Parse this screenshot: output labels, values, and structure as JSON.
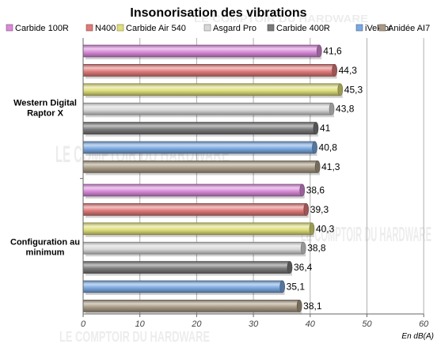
{
  "chart_data": {
    "type": "bar",
    "orientation": "horizontal",
    "title": "Insonorisation des vibrations",
    "unit_label": "En dB(A)",
    "xlim": [
      0,
      60
    ],
    "xticks": [
      0,
      10,
      20,
      30,
      40,
      50,
      60
    ],
    "grid": true,
    "legend_position": "top",
    "watermark": "LE COMPTOIR DU HARDWARE",
    "series": [
      {
        "name": "Carbide 100R",
        "color": "#d98ad9",
        "values": [
          41.6,
          38.6
        ]
      },
      {
        "name": "N400",
        "color": "#e07a7a",
        "values": [
          44.3,
          39.3
        ]
      },
      {
        "name": "Carbide Air 540",
        "color": "#dede7a",
        "values": [
          45.3,
          40.3
        ]
      },
      {
        "name": "Asgard Pro",
        "color": "#d8d8d8",
        "values": [
          43.8,
          38.8
        ]
      },
      {
        "name": "Carbide 400R",
        "color": "#7a7a7a",
        "values": [
          41,
          36.4
        ]
      },
      {
        "name": "iVektor",
        "color": "#7aa8e0",
        "values": [
          40.8,
          35.1
        ]
      },
      {
        "name": "Anidée AI7",
        "color": "#a89a84",
        "values": [
          41.3,
          38.1
        ]
      }
    ],
    "value_labels": [
      [
        "41,6",
        "44,3",
        "45,3",
        "43,8",
        "41",
        "40,8",
        "41,3"
      ],
      [
        "38,6",
        "39,3",
        "40,3",
        "38,8",
        "36,4",
        "35,1",
        "38,1"
      ]
    ],
    "groups": [
      {
        "lines": [
          "Western Digital",
          "Raptor X"
        ]
      },
      {
        "lines": [
          "Configuration au",
          "minimum"
        ]
      }
    ]
  }
}
